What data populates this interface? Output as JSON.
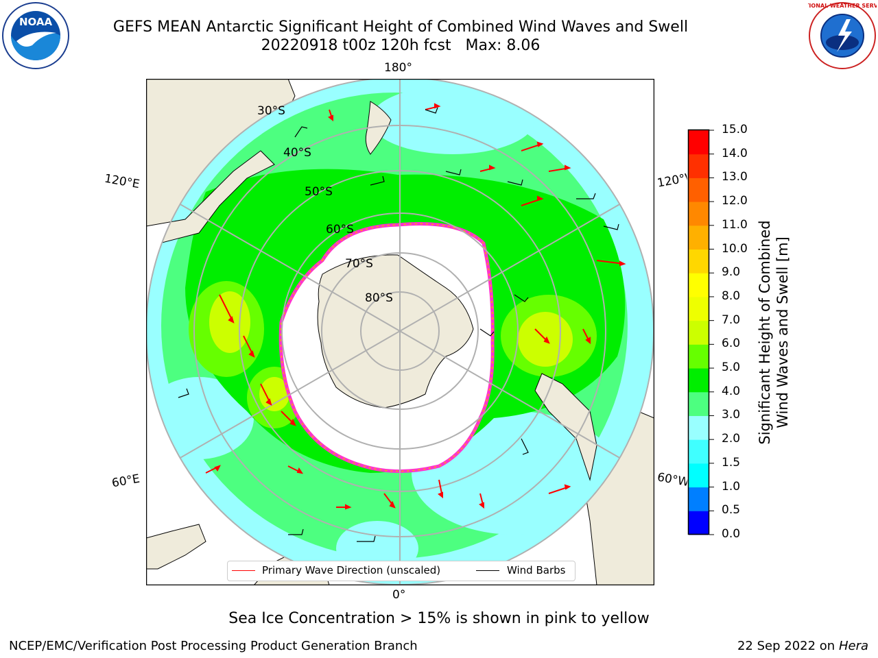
{
  "title": {
    "line1": "GEFS MEAN Antarctic Significant Height of Combined Wind Waves and Swell",
    "line2": "20220918 t00z 120h fcst   Max: 8.06"
  },
  "logos": {
    "left": {
      "name": "noaa-logo",
      "text": "NOAA"
    },
    "right": {
      "name": "nws-logo",
      "text": "NATIONAL WEATHER SERVICE"
    }
  },
  "map": {
    "longitude_labels": {
      "top": "180°",
      "bottom": "0°",
      "left_upper": "120°E",
      "left_lower": "60°E",
      "right_upper": "120°W",
      "right_lower": "60°W"
    },
    "latitude_labels": [
      "30°S",
      "40°S",
      "50°S",
      "60°S",
      "70°S",
      "80°S"
    ],
    "colors": {
      "land": "#efebdb",
      "ocean_frame": "#ffffff",
      "sea_ice": "#ff33cc",
      "sea_ice_edge": "#ffb000",
      "grid": "#b0b0b0",
      "wave_arrow": "#ff0000",
      "wind_barb": "#000000"
    }
  },
  "colorbar": {
    "label": "Significant Height of Combined Wind Waves and Swell [m]",
    "ticks": [
      "0.0",
      "0.5",
      "1.0",
      "1.5",
      "2.0",
      "3.0",
      "4.0",
      "5.0",
      "6.0",
      "7.0",
      "8.0",
      "9.0",
      "10.0",
      "11.0",
      "12.0",
      "13.0",
      "14.0",
      "15.0"
    ],
    "colors": [
      "#0000ff",
      "#007fff",
      "#00ffff",
      "#40ffff",
      "#99ffff",
      "#4dff80",
      "#00ee00",
      "#66ff00",
      "#ccff00",
      "#eeff00",
      "#ffff00",
      "#ffd700",
      "#ffb000",
      "#ff8800",
      "#ff6000",
      "#ff3000",
      "#ff0000"
    ]
  },
  "legend": {
    "items": [
      {
        "label": "Primary Wave Direction (unscaled)",
        "color": "#ff0000"
      },
      {
        "label": "Wind Barbs",
        "color": "#000000"
      }
    ]
  },
  "caption": "Sea Ice Concentration > 15% is shown in pink to yellow",
  "footer": {
    "left": "NCEP/EMC/Verification Post Processing Product Generation Branch",
    "right_date": "22 Sep 2022 on",
    "right_host": "Hera"
  }
}
